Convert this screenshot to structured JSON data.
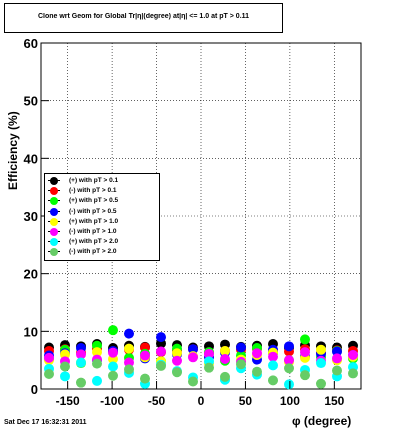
{
  "title": "Clone wrt Geom for Global Tr|η|(degree) at|η| <= 1.0 at pT > 0.11",
  "footer": "Sat Dec 17 16:32:31 2011",
  "chart_data": {
    "type": "scatter",
    "xlabel": "φ (degree)",
    "ylabel": "Efficiency (%)",
    "xlim": [
      -180,
      180
    ],
    "ylim": [
      0,
      60
    ],
    "xticks": [
      -150,
      -100,
      -50,
      0,
      50,
      100,
      150
    ],
    "yticks": [
      0,
      10,
      20,
      30,
      40,
      50,
      60
    ],
    "grid": true,
    "legend_position": "middle-left",
    "series": [
      {
        "name": "(+) with pT > 0.1",
        "color": "#000000",
        "values": [
          7.2,
          7.6,
          7.4,
          7.8,
          7.1,
          7.5,
          7.3,
          7.9,
          7.6,
          7.2,
          7.4,
          7.7,
          7.3,
          7.5,
          7.8,
          7.1,
          7.6,
          7.4,
          7.2,
          7.5
        ]
      },
      {
        "name": "(-) with pT > 0.1",
        "color": "#ff0000",
        "values": [
          6.6,
          6.9,
          6.3,
          7.0,
          6.5,
          6.8,
          7.2,
          6.4,
          6.7,
          6.9,
          6.2,
          6.6,
          6.8,
          7.0,
          6.4,
          6.5,
          6.9,
          6.3,
          6.7,
          6.6
        ]
      },
      {
        "name": "(+) with pT > 0.5",
        "color": "#00ff00",
        "values": [
          5.2,
          6.8,
          4.5,
          7.5,
          10.2,
          5.4,
          6.1,
          4.8,
          7.0,
          5.6,
          6.4,
          4.9,
          5.8,
          7.1,
          6.2,
          5.0,
          8.6,
          5.5,
          6.6,
          5.3
        ]
      },
      {
        "name": "(-) with pT > 0.5",
        "color": "#0000ff",
        "values": [
          5.8,
          6.2,
          7.1,
          5.0,
          6.6,
          9.6,
          5.3,
          9.0,
          6.0,
          6.9,
          5.5,
          6.3,
          7.2,
          5.1,
          6.8,
          7.4,
          5.7,
          6.1,
          6.5,
          5.9
        ]
      },
      {
        "name": "(+) with pT > 1.0",
        "color": "#ffff00",
        "values": [
          5.0,
          6.0,
          4.6,
          6.4,
          5.2,
          7.0,
          5.5,
          4.8,
          6.2,
          5.7,
          4.4,
          6.6,
          5.1,
          5.9,
          6.3,
          4.7,
          5.4,
          6.8,
          5.0,
          5.6
        ]
      },
      {
        "name": "(-) with pT > 1.0",
        "color": "#ff00ff",
        "values": [
          5.4,
          4.8,
          6.0,
          5.1,
          6.3,
          4.6,
          5.8,
          6.5,
          4.9,
          5.5,
          6.1,
          5.2,
          4.7,
          6.2,
          5.6,
          5.0,
          6.4,
          4.9,
          5.3,
          5.9
        ]
      },
      {
        "name": "(+) with pT > 2.0",
        "color": "#00ffff",
        "values": [
          3.5,
          2.2,
          4.6,
          1.4,
          3.9,
          2.8,
          0.9,
          4.2,
          3.1,
          2.0,
          4.8,
          1.6,
          3.6,
          2.5,
          4.1,
          0.8,
          3.3,
          4.5,
          2.2,
          3.8
        ]
      },
      {
        "name": "(-) with pT > 2.0",
        "color": "#66cc66",
        "values": [
          2.6,
          3.9,
          1.1,
          4.4,
          2.3,
          3.4,
          1.8,
          4.0,
          2.9,
          1.3,
          3.7,
          2.1,
          4.3,
          3.0,
          1.5,
          3.6,
          2.4,
          0.9,
          3.2,
          2.7
        ]
      }
    ]
  }
}
